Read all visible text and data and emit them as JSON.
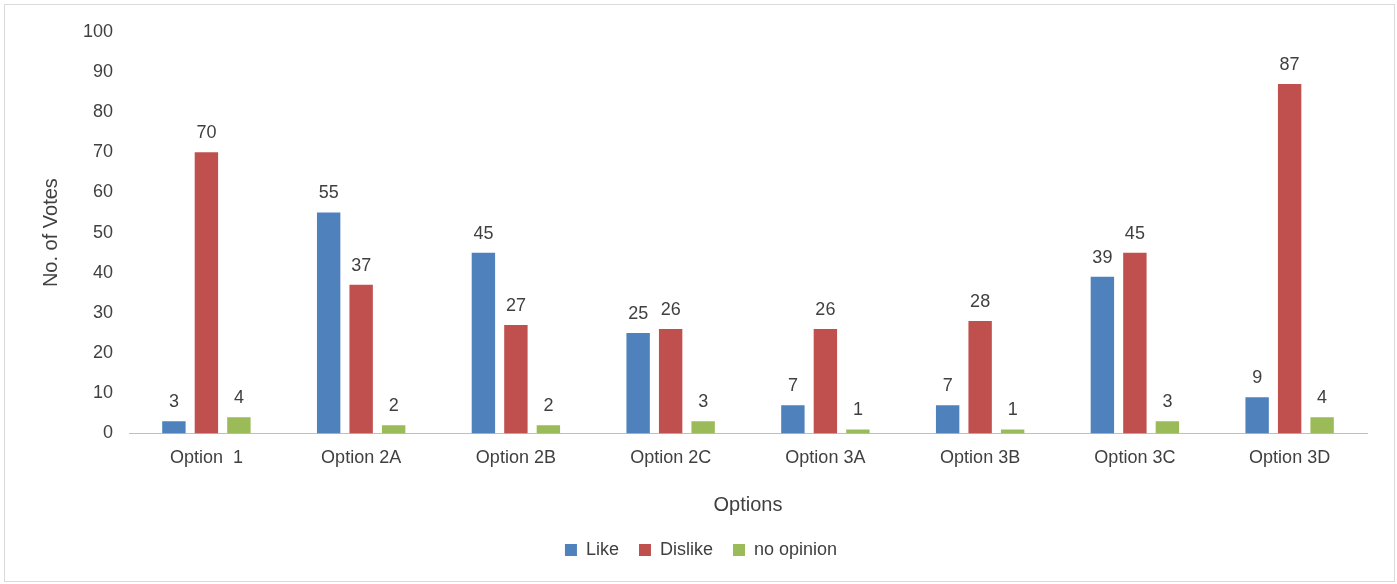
{
  "chart_data": {
    "type": "bar",
    "xlabel": "Options",
    "ylabel": "No. of Votes",
    "categories": [
      "Option  1",
      "Option 2A",
      "Option 2B",
      "Option 2C",
      "Option 3A",
      "Option 3B",
      "Option 3C",
      "Option 3D"
    ],
    "series": [
      {
        "name": "Like",
        "color": "#4f81bd",
        "values": [
          3,
          55,
          45,
          25,
          7,
          7,
          39,
          9
        ]
      },
      {
        "name": "Dislike",
        "color": "#c0504d",
        "values": [
          70,
          37,
          27,
          26,
          26,
          28,
          45,
          87
        ]
      },
      {
        "name": "no opinion",
        "color": "#9bbb59",
        "values": [
          4,
          2,
          2,
          3,
          1,
          1,
          3,
          4
        ]
      }
    ],
    "ylim": [
      0,
      100
    ],
    "yticks": [
      0,
      10,
      20,
      30,
      40,
      50,
      60,
      70,
      80,
      90,
      100
    ],
    "grid": false,
    "legend": "bottom",
    "data_labels": true
  }
}
